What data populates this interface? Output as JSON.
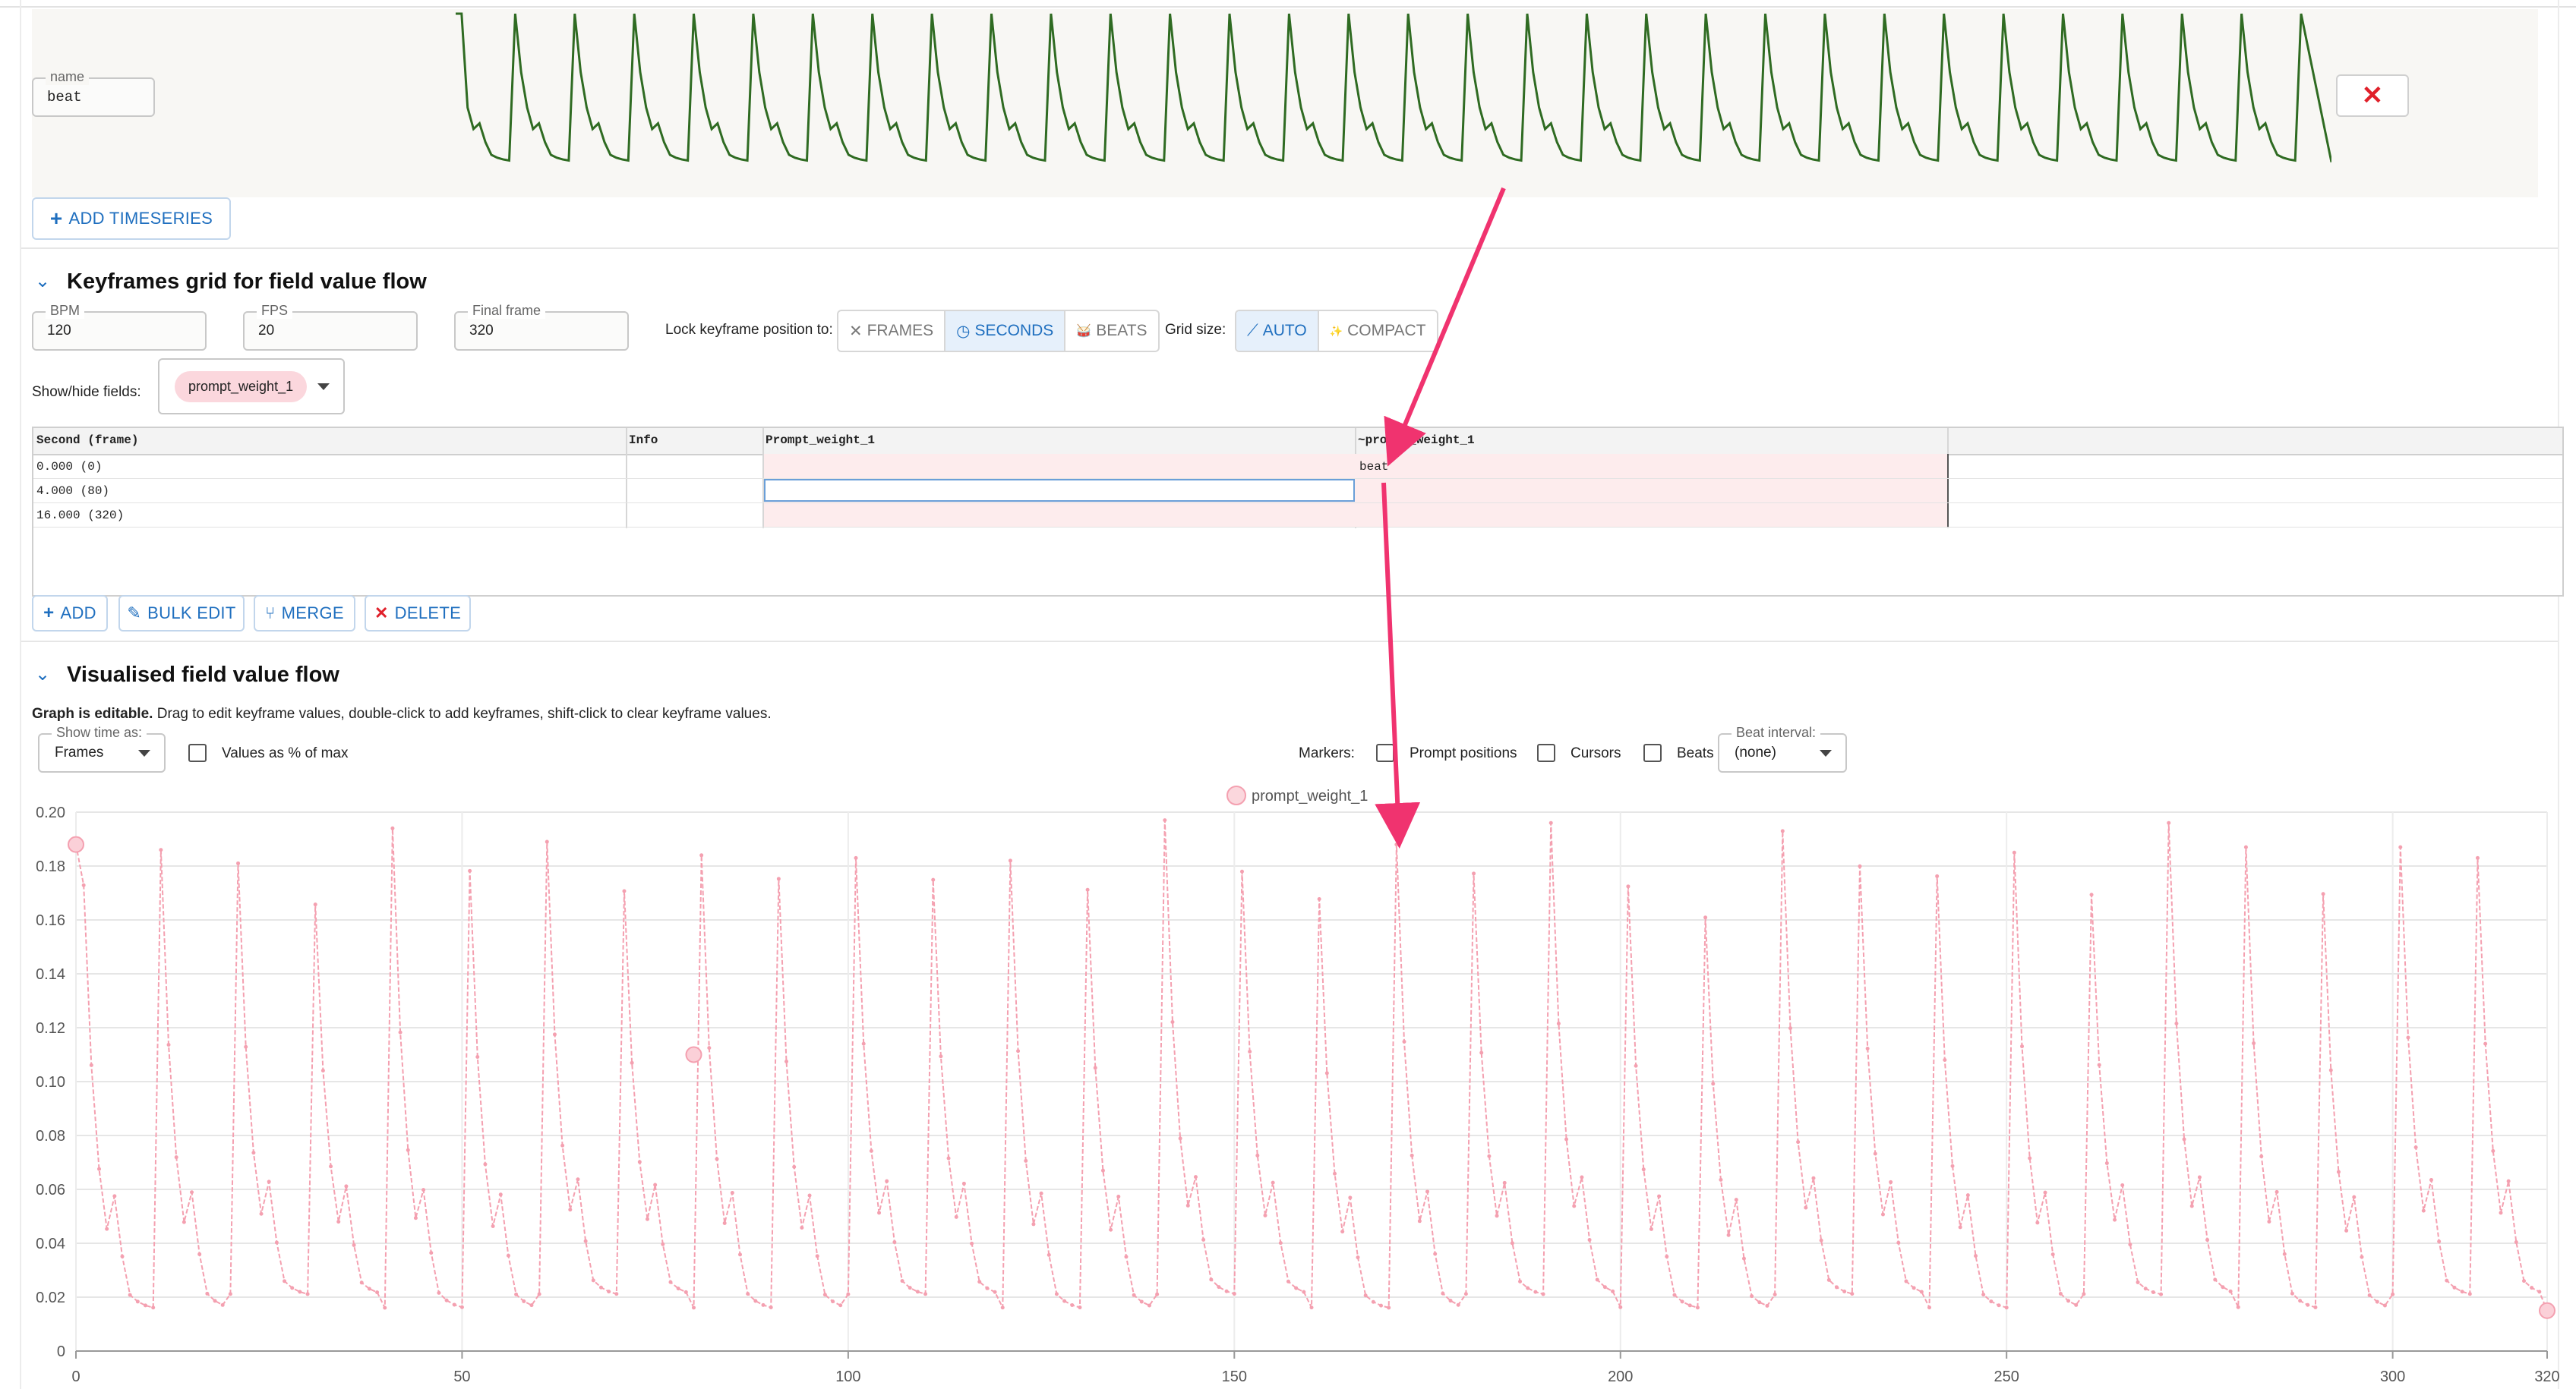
{
  "timeseries": {
    "name_label": "name",
    "name_value": "beat",
    "add_label": "ADD TIMESERIES"
  },
  "keyframes_section": {
    "title": "Keyframes grid for field value flow",
    "bpm": {
      "label": "BPM",
      "value": "120"
    },
    "fps": {
      "label": "FPS",
      "value": "20"
    },
    "final_frame": {
      "label": "Final frame",
      "value": "320"
    },
    "lock_label": "Lock keyframe position to:",
    "lock_options": [
      {
        "icon": "x-icon",
        "glyph": "✕",
        "label": "FRAMES",
        "active": false
      },
      {
        "icon": "clock-icon",
        "glyph": "◷",
        "label": "SECONDS",
        "active": true
      },
      {
        "icon": "drum-icon",
        "glyph": "🥁",
        "label": "BEATS",
        "active": false
      }
    ],
    "grid_size_label": "Grid size:",
    "grid_options": [
      {
        "icon": "wand-icon",
        "glyph": "⟋",
        "label": "AUTO",
        "active": true
      },
      {
        "icon": "sparkles-icon",
        "glyph": "✨",
        "label": "COMPACT",
        "active": false
      }
    ],
    "show_hide_label": "Show/hide fields:",
    "chip": "prompt_weight_1"
  },
  "grid": {
    "headers": [
      "Second (frame)",
      "Info",
      "Prompt_weight_1",
      "~prompt_weight_1"
    ],
    "rows": [
      {
        "time": "0.000 (0)",
        "info": "",
        "value": "",
        "expr": "beat"
      },
      {
        "time": "4.000 (80)",
        "info": "",
        "value": "",
        "expr": ""
      },
      {
        "time": "16.000 (320)",
        "info": "",
        "value": "",
        "expr": ""
      }
    ],
    "actions": [
      {
        "name": "add-button",
        "icon": "plus-icon",
        "glyph": "+",
        "label": "ADD"
      },
      {
        "name": "bulk-edit-button",
        "icon": "pencil-icon",
        "glyph": "✎",
        "label": "BULK EDIT"
      },
      {
        "name": "merge-button",
        "icon": "merge-icon",
        "glyph": "⑂",
        "label": "MERGE"
      },
      {
        "name": "delete-button",
        "icon": "close-icon",
        "glyph": "✕",
        "label": "DELETE"
      }
    ]
  },
  "visual_section": {
    "title": "Visualised field value flow",
    "hint_bold": "Graph is editable.",
    "hint_rest": " Drag to edit keyframe values, double-click to add keyframes, shift-click to clear keyframe values.",
    "show_time": {
      "label": "Show time as:",
      "value": "Frames"
    },
    "values_pct": "Values as % of max",
    "markers_label": "Markers:",
    "markers": [
      "Prompt positions",
      "Cursors",
      "Beats"
    ],
    "beat_interval": {
      "label": "Beat interval:",
      "value": "(none)"
    }
  },
  "colors": {
    "accent": "#1f6fbf",
    "series_pink": "#f4a0b0",
    "timeseries_green": "#2f6b22",
    "annotation_arrow": "#f0336f"
  },
  "chart_data": {
    "type": "line",
    "title": "",
    "xlabel": "",
    "ylabel": "",
    "legend": [
      "prompt_weight_1"
    ],
    "legend_position": "top-center",
    "xlim": [
      0,
      320
    ],
    "ylim": [
      0,
      0.2
    ],
    "x_ticks": [
      "0",
      "50",
      "100",
      "150",
      "200",
      "250",
      "300",
      "320"
    ],
    "y_ticks": [
      "0",
      "0.02",
      "0.04",
      "0.06",
      "0.08",
      "0.10",
      "0.12",
      "0.14",
      "0.16",
      "0.18",
      "0.20"
    ],
    "grid": true,
    "beat_period_frames": 10,
    "series": [
      {
        "name": "prompt_weight_1",
        "peaks": [
          {
            "x": 0,
            "y": 0.188
          },
          {
            "x": 11,
            "y": 0.186
          },
          {
            "x": 21,
            "y": 0.181
          },
          {
            "x": 41,
            "y": 0.194
          },
          {
            "x": 61,
            "y": 0.189
          },
          {
            "x": 81,
            "y": 0.184
          },
          {
            "x": 101,
            "y": 0.183
          },
          {
            "x": 121,
            "y": 0.182
          },
          {
            "x": 141,
            "y": 0.197
          },
          {
            "x": 171,
            "y": 0.188
          },
          {
            "x": 191,
            "y": 0.196
          },
          {
            "x": 221,
            "y": 0.193
          },
          {
            "x": 251,
            "y": 0.185
          },
          {
            "x": 271,
            "y": 0.196
          },
          {
            "x": 281,
            "y": 0.187
          },
          {
            "x": 301,
            "y": 0.187
          },
          {
            "x": 311,
            "y": 0.183
          }
        ],
        "troughs_approx": [
          0.015,
          0.02
        ],
        "keyframes": [
          {
            "x": 0,
            "y": 0.188
          },
          {
            "x": 80,
            "y": 0.11
          },
          {
            "x": 320,
            "y": 0.015
          }
        ]
      }
    ]
  }
}
